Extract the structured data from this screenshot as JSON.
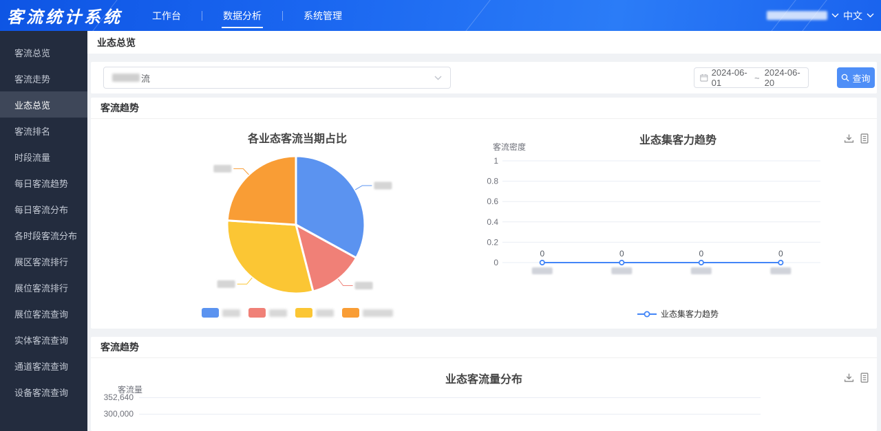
{
  "app": {
    "logo": "客流统计系统",
    "lang": "中文"
  },
  "navbar": {
    "items": [
      {
        "label": "工作台",
        "active": false
      },
      {
        "label": "数据分析",
        "active": true
      },
      {
        "label": "系统管理",
        "active": false
      }
    ],
    "user_redacted": true
  },
  "sidebar": {
    "active": "业态总览",
    "items": [
      "客流总览",
      "客流走势",
      "业态总览",
      "客流排名",
      "时段流量",
      "每日客流趋势",
      "每日客流分布",
      "各时段客流分布",
      "展区客流排行",
      "展位客流排行",
      "展位客流查询",
      "实体客流查询",
      "通道客流查询",
      "设备客流查询"
    ]
  },
  "page": {
    "title": "业态总览"
  },
  "filter": {
    "select_redacted": true,
    "select_value_suffix": "流",
    "date_start": "2024-06-01",
    "date_separator": "~",
    "date_end": "2024-06-20",
    "query_label": "查询"
  },
  "cards": [
    {
      "header": "客流趋势"
    },
    {
      "header": "客流趋势"
    }
  ],
  "chart_data": [
    {
      "type": "pie",
      "title": "各业态客流当期占比",
      "labels_redacted": true,
      "slices": [
        {
          "pct": 33,
          "color": "#5b93f0"
        },
        {
          "pct": 13,
          "color": "#f08077"
        },
        {
          "pct": 30,
          "color": "#fbc634"
        },
        {
          "pct": 24,
          "color": "#f99d35"
        }
      ],
      "legend_position": "bottom",
      "legend_labels_redacted": true
    },
    {
      "type": "line",
      "title": "业态集客力趋势",
      "ylabel": "客流密度",
      "ylim": [
        0,
        1
      ],
      "yticks": [
        "1",
        "0.8",
        "0.6",
        "0.4",
        "0.2",
        "0"
      ],
      "categories_redacted": true,
      "categories_count": 4,
      "series": [
        {
          "name": "业态集客力趋势",
          "values": [
            0,
            0,
            0,
            0
          ]
        }
      ],
      "point_labels": [
        "0",
        "0",
        "0",
        "0"
      ],
      "line_color": "#4285f7",
      "legend": [
        "业态集客力趋势"
      ],
      "grid": true
    },
    {
      "type": "line",
      "title": "业态客流量分布",
      "ylabel": "客流量",
      "yticks_visible": [
        "352,640",
        "300,000"
      ],
      "partially_visible": true,
      "grid": true
    }
  ]
}
